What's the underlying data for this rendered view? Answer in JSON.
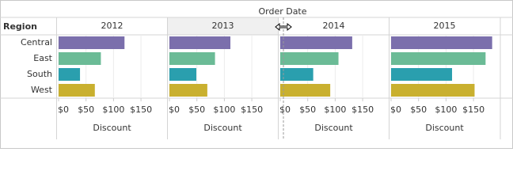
{
  "chart_data": {
    "type": "bar",
    "title": "Order Date",
    "y_label": "Region",
    "x_label": "Discount",
    "categories": [
      "Central",
      "East",
      "South",
      "West"
    ],
    "colors": [
      "#7b6fac",
      "#6bbb96",
      "#2a9fae",
      "#c9b02f"
    ],
    "panels": [
      {
        "name": "2012",
        "values": [
          120,
          77,
          39,
          66
        ]
      },
      {
        "name": "2013",
        "values": [
          111,
          83,
          49,
          69
        ]
      },
      {
        "name": "2014",
        "values": [
          131,
          106,
          60,
          91
        ]
      },
      {
        "name": "2015",
        "values": [
          184,
          172,
          111,
          152
        ]
      }
    ],
    "xlim": [
      0,
      196
    ],
    "xticks": [
      {
        "value": 0,
        "label": "$0"
      },
      {
        "value": 50,
        "label": "$50"
      },
      {
        "value": 100,
        "label": "$100"
      },
      {
        "value": 150,
        "label": "$150"
      }
    ],
    "grid": true
  }
}
